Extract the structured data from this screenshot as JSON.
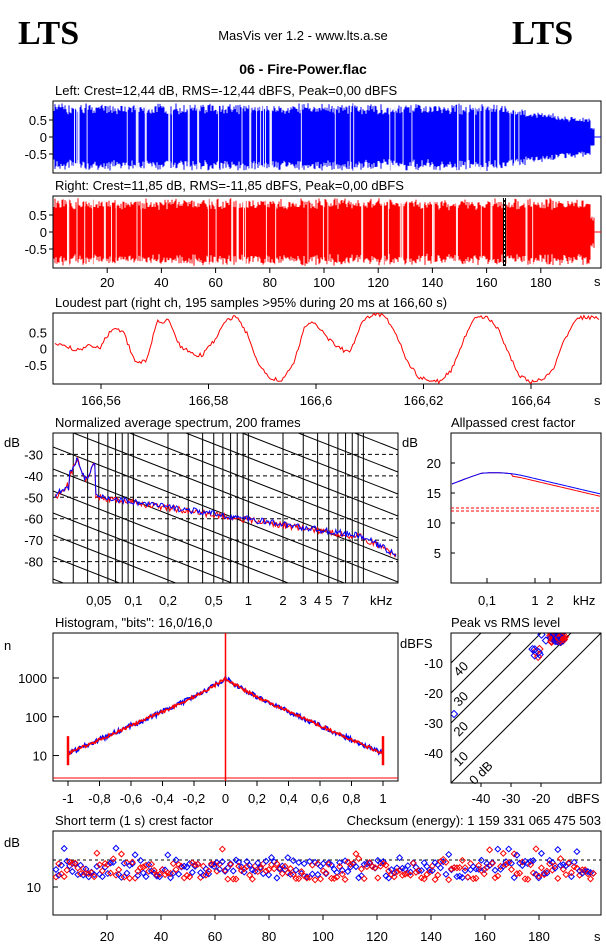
{
  "header": {
    "logo_left": "LTS",
    "logo_right": "LTS",
    "app_title": "MasVis ver 1.2 - www.lts.a.se",
    "file_title": "06 - Fire-Power.flac"
  },
  "colors": {
    "left": "#0000ff",
    "right": "#ff0000"
  },
  "chart_data": [
    {
      "type": "line",
      "id": "left-waveform",
      "title": "Left: Crest=12,44 dB, RMS=-12,44 dBFS, Peak=0,00 dBFS",
      "color": "#0000ff",
      "y_ticks": [
        "0.5",
        "0",
        "-0.5"
      ],
      "ylim": [
        -1,
        1
      ],
      "xlim": [
        0,
        200
      ]
    },
    {
      "type": "line",
      "id": "right-waveform",
      "title": "Right: Crest=11,85 dB, RMS=-11,85 dBFS, Peak=0,00 dBFS",
      "color": "#ff0000",
      "y_ticks": [
        "0.5",
        "0",
        "-0.5"
      ],
      "ylim": [
        -1,
        1
      ],
      "xlim": [
        0,
        200
      ],
      "marker_x": 166.6,
      "x_ticks": [
        "20",
        "40",
        "60",
        "80",
        "100",
        "120",
        "140",
        "160",
        "180"
      ],
      "x_unit": "s"
    },
    {
      "type": "line",
      "id": "loudest-part",
      "title": "Loudest part (right ch, 195 samples >95% during 20 ms at 166,60 s)",
      "color": "#ff0000",
      "y_ticks": [
        "0.5",
        "0",
        "-0.5"
      ],
      "x_ticks": [
        "166,56",
        "166,58",
        "166,6",
        "166,62",
        "166,64"
      ],
      "x_unit": "s",
      "xlim": [
        166.55,
        166.65
      ]
    },
    {
      "type": "line",
      "id": "avg-spectrum",
      "title": "Normalized average spectrum, 200 frames",
      "ylabel": "dB",
      "y_ticks": [
        "-30",
        "-40",
        "-50",
        "-60",
        "-70",
        "-80"
      ],
      "x_ticks": [
        "0,05",
        "0,1",
        "0,2",
        "0,5",
        "1",
        "2",
        "3",
        "4",
        "5",
        "7"
      ],
      "x_unit": "kHz",
      "ylim": [
        -90,
        -20
      ]
    },
    {
      "type": "line",
      "id": "allpassed-crest",
      "title": "Allpassed crest factor",
      "ylabel": "dB",
      "y_ticks": [
        "20",
        "15",
        "10",
        "5"
      ],
      "x_ticks": [
        "0,1",
        "1",
        "2"
      ],
      "x_unit": "kHz",
      "ylim": [
        0,
        25
      ],
      "left_ref": 12.5,
      "right_ref": 12
    },
    {
      "type": "line",
      "id": "histogram",
      "title": "Histogram, \"bits\": 16,0/16,0",
      "ylabel": "n",
      "y_ticks": [
        "1000",
        "100",
        "10"
      ],
      "x_ticks": [
        "-1",
        "-0,8",
        "-0,6",
        "-0,4",
        "-0,2",
        "0",
        "0,2",
        "0,4",
        "0,6",
        "0,8",
        "1"
      ],
      "xlim": [
        -1.1,
        1.1
      ]
    },
    {
      "type": "scatter",
      "id": "peak-vs-rms",
      "title": "Peak vs RMS level",
      "ylabel": "dBFS",
      "xlabel": "dBFS",
      "y_ticks": [
        "-10",
        "-20",
        "-30",
        "-40"
      ],
      "x_ticks": [
        "-40",
        "-30",
        "-20"
      ],
      "diag_labels": [
        "40",
        "30",
        "20",
        "10",
        "0 dB"
      ]
    },
    {
      "type": "scatter",
      "id": "short-term-crest",
      "title": "Short term (1 s) crest factor",
      "checksum": "Checksum (energy):  1 159 331 065 475 503",
      "ylabel": "dB",
      "y_ticks": [
        "10"
      ],
      "x_ticks": [
        "20",
        "40",
        "60",
        "80",
        "100",
        "120",
        "140",
        "160",
        "180"
      ],
      "x_unit": "s",
      "xlim": [
        0,
        200
      ]
    }
  ]
}
